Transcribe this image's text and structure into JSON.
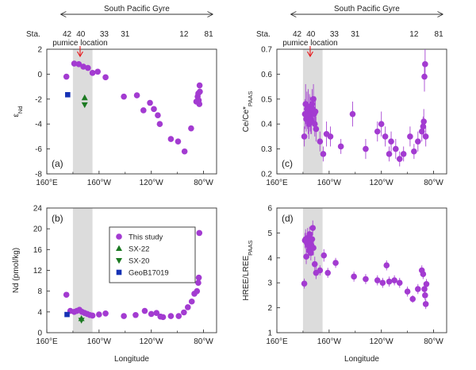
{
  "colors": {
    "this_study": "#a33bd1",
    "sx22": "#1c7a22",
    "sx20": "#1c7a22",
    "geob": "#1632b5",
    "pumice": "#e8191b",
    "shade": "#dcdcdc"
  },
  "header": {
    "gyre_label": "South Pacific Gyre",
    "station_prefix": "Sta.",
    "stations": [
      {
        "label": "42",
        "lon": 175.5
      },
      {
        "label": "40",
        "lon": 186.0
      },
      {
        "label": "33",
        "lon": 204.0
      },
      {
        "label": "31",
        "lon": 220.0
      },
      {
        "label": "12",
        "lon": 265.0
      },
      {
        "label": "81",
        "lon": 284.0
      }
    ],
    "gyre_range_lon": [
      176,
      283
    ],
    "pumice_label": "pumice location",
    "pumice_lon": 185.5
  },
  "xaxis": {
    "label": "Longitude",
    "lim": [
      160,
      290
    ],
    "ticks": [
      {
        "lon": 160,
        "label": "160°E"
      },
      {
        "lon": 200,
        "label": "160°W"
      },
      {
        "lon": 240,
        "label": "120°W"
      },
      {
        "lon": 280,
        "label": "80°W"
      }
    ],
    "shade_range": [
      180,
      195
    ]
  },
  "legend": {
    "entries": [
      {
        "key": "this_study",
        "label": "This study",
        "marker": "circle"
      },
      {
        "key": "sx22",
        "label": "SX-22",
        "marker": "triangle-up"
      },
      {
        "key": "sx20",
        "label": "SX-20",
        "marker": "triangle-down"
      },
      {
        "key": "geob",
        "label": "GeoB17019",
        "marker": "square"
      }
    ]
  },
  "chart_data": [
    {
      "type": "scatter",
      "panel": "(a)",
      "ylabel": "εNd",
      "ylim": [
        -8,
        2
      ],
      "yticks": [
        2,
        0,
        -2,
        -4,
        -6,
        -8
      ],
      "series": [
        {
          "name": "This study",
          "marker": "circle",
          "points": [
            {
              "x": 175.0,
              "y": -0.2
            },
            {
              "x": 181.0,
              "y": 0.85
            },
            {
              "x": 184.5,
              "y": 0.8
            },
            {
              "x": 188.0,
              "y": 0.6
            },
            {
              "x": 191.5,
              "y": 0.5
            },
            {
              "x": 195.0,
              "y": 0.1
            },
            {
              "x": 199.0,
              "y": 0.2
            },
            {
              "x": 205.0,
              "y": -0.25
            },
            {
              "x": 219.0,
              "y": -1.8
            },
            {
              "x": 229.0,
              "y": -1.7
            },
            {
              "x": 234.0,
              "y": -2.9
            },
            {
              "x": 239.0,
              "y": -2.3
            },
            {
              "x": 242.0,
              "y": -2.8
            },
            {
              "x": 245.0,
              "y": -3.3
            },
            {
              "x": 246.5,
              "y": -4.0
            },
            {
              "x": 255.0,
              "y": -5.2
            },
            {
              "x": 260.5,
              "y": -5.4
            },
            {
              "x": 265.5,
              "y": -6.2
            },
            {
              "x": 270.5,
              "y": -4.35
            },
            {
              "x": 274.5,
              "y": -2.2
            },
            {
              "x": 275.5,
              "y": -1.8
            },
            {
              "x": 276.0,
              "y": -1.55
            },
            {
              "x": 276.3,
              "y": -2.1
            },
            {
              "x": 276.8,
              "y": -2.4
            },
            {
              "x": 277.0,
              "y": -0.9
            },
            {
              "x": 277.2,
              "y": -1.4
            }
          ]
        },
        {
          "name": "SX-22",
          "marker": "triangle-up",
          "points": [
            {
              "x": 189.0,
              "y": -1.9
            }
          ]
        },
        {
          "name": "SX-20",
          "marker": "triangle-down",
          "points": [
            {
              "x": 189.0,
              "y": -2.45
            }
          ]
        },
        {
          "name": "GeoB17019",
          "marker": "square",
          "points": [
            {
              "x": 176.0,
              "y": -1.65
            }
          ]
        }
      ]
    },
    {
      "type": "scatter",
      "panel": "(c)",
      "ylabel": "Ce/Ce* PAAS",
      "ylim": [
        0.2,
        0.7
      ],
      "yticks": [
        0.2,
        0.3,
        0.4,
        0.5,
        0.6,
        0.7
      ],
      "series": [
        {
          "name": "This study",
          "marker": "circle",
          "points": [
            {
              "x": 181.0,
              "y": 0.35,
              "err": 0.04
            },
            {
              "x": 181.5,
              "y": 0.44,
              "err": 0.06
            },
            {
              "x": 182.0,
              "y": 0.48,
              "err": 0.08
            },
            {
              "x": 182.5,
              "y": 0.42,
              "err": 0.05
            },
            {
              "x": 183.0,
              "y": 0.46,
              "err": 0.07
            },
            {
              "x": 183.5,
              "y": 0.43,
              "err": 0.05
            },
            {
              "x": 184.0,
              "y": 0.45,
              "err": 0.09
            },
            {
              "x": 184.5,
              "y": 0.4,
              "err": 0.06
            },
            {
              "x": 185.0,
              "y": 0.47,
              "err": 0.05
            },
            {
              "x": 185.5,
              "y": 0.44,
              "err": 0.07
            },
            {
              "x": 186.0,
              "y": 0.42,
              "err": 0.06
            },
            {
              "x": 186.5,
              "y": 0.41,
              "err": 0.05
            },
            {
              "x": 187.0,
              "y": 0.48,
              "err": 0.06
            },
            {
              "x": 187.5,
              "y": 0.46,
              "err": 0.05
            },
            {
              "x": 188.0,
              "y": 0.5,
              "err": 0.06
            },
            {
              "x": 188.5,
              "y": 0.44,
              "err": 0.05
            },
            {
              "x": 189.0,
              "y": 0.4,
              "err": 0.05
            },
            {
              "x": 189.5,
              "y": 0.45,
              "err": 0.06
            },
            {
              "x": 190.0,
              "y": 0.38,
              "err": 0.05
            },
            {
              "x": 193.0,
              "y": 0.33,
              "err": 0.04
            },
            {
              "x": 195.5,
              "y": 0.28,
              "err": 0.03
            },
            {
              "x": 198.0,
              "y": 0.36,
              "err": 0.05
            },
            {
              "x": 201.0,
              "y": 0.35,
              "err": 0.04
            },
            {
              "x": 209.0,
              "y": 0.31,
              "err": 0.03
            },
            {
              "x": 218.0,
              "y": 0.44,
              "err": 0.05
            },
            {
              "x": 228.0,
              "y": 0.3,
              "err": 0.04
            },
            {
              "x": 237.0,
              "y": 0.37,
              "err": 0.04
            },
            {
              "x": 240.0,
              "y": 0.4,
              "err": 0.05
            },
            {
              "x": 243.0,
              "y": 0.35,
              "err": 0.04
            },
            {
              "x": 246.0,
              "y": 0.28,
              "err": 0.03
            },
            {
              "x": 247.5,
              "y": 0.33,
              "err": 0.04
            },
            {
              "x": 251.0,
              "y": 0.3,
              "err": 0.04
            },
            {
              "x": 254.0,
              "y": 0.26,
              "err": 0.03
            },
            {
              "x": 257.0,
              "y": 0.28,
              "err": 0.03
            },
            {
              "x": 262.0,
              "y": 0.35,
              "err": 0.04
            },
            {
              "x": 265.0,
              "y": 0.29,
              "err": 0.03
            },
            {
              "x": 268.0,
              "y": 0.33,
              "err": 0.04
            },
            {
              "x": 271.0,
              "y": 0.37,
              "err": 0.04
            },
            {
              "x": 272.0,
              "y": 0.39,
              "err": 0.04
            },
            {
              "x": 272.5,
              "y": 0.41,
              "err": 0.05
            },
            {
              "x": 273.0,
              "y": 0.59,
              "err": 0.06
            },
            {
              "x": 273.5,
              "y": 0.64,
              "err": 0.06
            },
            {
              "x": 274.0,
              "y": 0.35,
              "err": 0.04
            }
          ]
        }
      ]
    },
    {
      "type": "scatter",
      "panel": "(b)",
      "ylabel": "Nd (pmol/kg)",
      "ylim": [
        0,
        24
      ],
      "yticks": [
        0,
        4,
        8,
        12,
        16,
        20,
        24
      ],
      "series": [
        {
          "name": "This study",
          "marker": "circle",
          "points": [
            {
              "x": 175.0,
              "y": 7.3
            },
            {
              "x": 178.0,
              "y": 4.2
            },
            {
              "x": 181.0,
              "y": 4.0
            },
            {
              "x": 183.0,
              "y": 4.2
            },
            {
              "x": 185.0,
              "y": 4.4
            },
            {
              "x": 187.0,
              "y": 4.0
            },
            {
              "x": 189.0,
              "y": 3.8
            },
            {
              "x": 191.0,
              "y": 3.6
            },
            {
              "x": 193.0,
              "y": 3.4
            },
            {
              "x": 195.0,
              "y": 3.3
            },
            {
              "x": 200.0,
              "y": 3.5
            },
            {
              "x": 205.0,
              "y": 3.7
            },
            {
              "x": 219.0,
              "y": 3.2
            },
            {
              "x": 228.0,
              "y": 3.4
            },
            {
              "x": 235.0,
              "y": 4.2
            },
            {
              "x": 240.0,
              "y": 3.6
            },
            {
              "x": 244.0,
              "y": 3.8
            },
            {
              "x": 247.0,
              "y": 3.1
            },
            {
              "x": 249.0,
              "y": 3.0
            },
            {
              "x": 255.0,
              "y": 3.2
            },
            {
              "x": 261.0,
              "y": 3.2
            },
            {
              "x": 265.0,
              "y": 3.9
            },
            {
              "x": 268.0,
              "y": 4.9
            },
            {
              "x": 271.0,
              "y": 6.0
            },
            {
              "x": 273.0,
              "y": 7.5
            },
            {
              "x": 275.0,
              "y": 8.0
            },
            {
              "x": 276.0,
              "y": 9.6
            },
            {
              "x": 276.4,
              "y": 10.6
            },
            {
              "x": 276.8,
              "y": 19.2
            }
          ]
        },
        {
          "name": "SX-22",
          "marker": "triangle-up",
          "points": [
            {
              "x": 186.5,
              "y": 2.7
            }
          ]
        },
        {
          "name": "SX-20",
          "marker": "triangle-down",
          "points": [
            {
              "x": 186.5,
              "y": 2.4
            }
          ]
        },
        {
          "name": "GeoB17019",
          "marker": "square",
          "points": [
            {
              "x": 175.5,
              "y": 3.5
            }
          ]
        }
      ]
    },
    {
      "type": "scatter",
      "panel": "(d)",
      "ylabel": "HREE/LREE PAAS",
      "ylim": [
        1,
        6
      ],
      "yticks": [
        1,
        2,
        3,
        4,
        5,
        6
      ],
      "series": [
        {
          "name": "This study",
          "marker": "circle",
          "points": [
            {
              "x": 181.0,
              "y": 2.97,
              "err": 0.2
            },
            {
              "x": 181.5,
              "y": 4.7,
              "err": 0.3
            },
            {
              "x": 182.0,
              "y": 4.75,
              "err": 0.4
            },
            {
              "x": 182.5,
              "y": 4.05,
              "err": 0.3
            },
            {
              "x": 183.0,
              "y": 4.6,
              "err": 0.3
            },
            {
              "x": 183.5,
              "y": 4.8,
              "err": 0.4
            },
            {
              "x": 184.0,
              "y": 4.5,
              "err": 0.35
            },
            {
              "x": 184.5,
              "y": 4.3,
              "err": 0.3
            },
            {
              "x": 185.0,
              "y": 4.95,
              "err": 0.3
            },
            {
              "x": 185.5,
              "y": 4.6,
              "err": 0.3
            },
            {
              "x": 186.0,
              "y": 4.2,
              "err": 0.3
            },
            {
              "x": 186.5,
              "y": 4.5,
              "err": 0.3
            },
            {
              "x": 187.0,
              "y": 4.75,
              "err": 0.3
            },
            {
              "x": 187.5,
              "y": 5.2,
              "err": 0.3
            },
            {
              "x": 188.0,
              "y": 4.4,
              "err": 0.3
            },
            {
              "x": 189.0,
              "y": 3.75,
              "err": 0.3
            },
            {
              "x": 190.0,
              "y": 3.4,
              "err": 0.25
            },
            {
              "x": 193.0,
              "y": 3.5,
              "err": 0.2
            },
            {
              "x": 196.0,
              "y": 4.1,
              "err": 0.25
            },
            {
              "x": 199.0,
              "y": 3.4,
              "err": 0.2
            },
            {
              "x": 205.0,
              "y": 3.8,
              "err": 0.2
            },
            {
              "x": 219.0,
              "y": 3.25,
              "err": 0.2
            },
            {
              "x": 228.0,
              "y": 3.15,
              "err": 0.2
            },
            {
              "x": 237.0,
              "y": 3.1,
              "err": 0.2
            },
            {
              "x": 241.0,
              "y": 3.0,
              "err": 0.2
            },
            {
              "x": 244.0,
              "y": 3.7,
              "err": 0.2
            },
            {
              "x": 246.0,
              "y": 3.05,
              "err": 0.2
            },
            {
              "x": 250.0,
              "y": 3.1,
              "err": 0.2
            },
            {
              "x": 254.0,
              "y": 3.0,
              "err": 0.2
            },
            {
              "x": 260.0,
              "y": 2.65,
              "err": 0.2
            },
            {
              "x": 264.0,
              "y": 2.35,
              "err": 0.15
            },
            {
              "x": 268.0,
              "y": 2.75,
              "err": 0.2
            },
            {
              "x": 271.0,
              "y": 3.5,
              "err": 0.2
            },
            {
              "x": 272.0,
              "y": 3.35,
              "err": 0.2
            },
            {
              "x": 273.0,
              "y": 2.75,
              "err": 0.2
            },
            {
              "x": 273.5,
              "y": 2.5,
              "err": 0.2
            },
            {
              "x": 274.0,
              "y": 2.15,
              "err": 0.2
            },
            {
              "x": 274.5,
              "y": 2.95,
              "err": 0.2
            }
          ]
        }
      ]
    }
  ]
}
